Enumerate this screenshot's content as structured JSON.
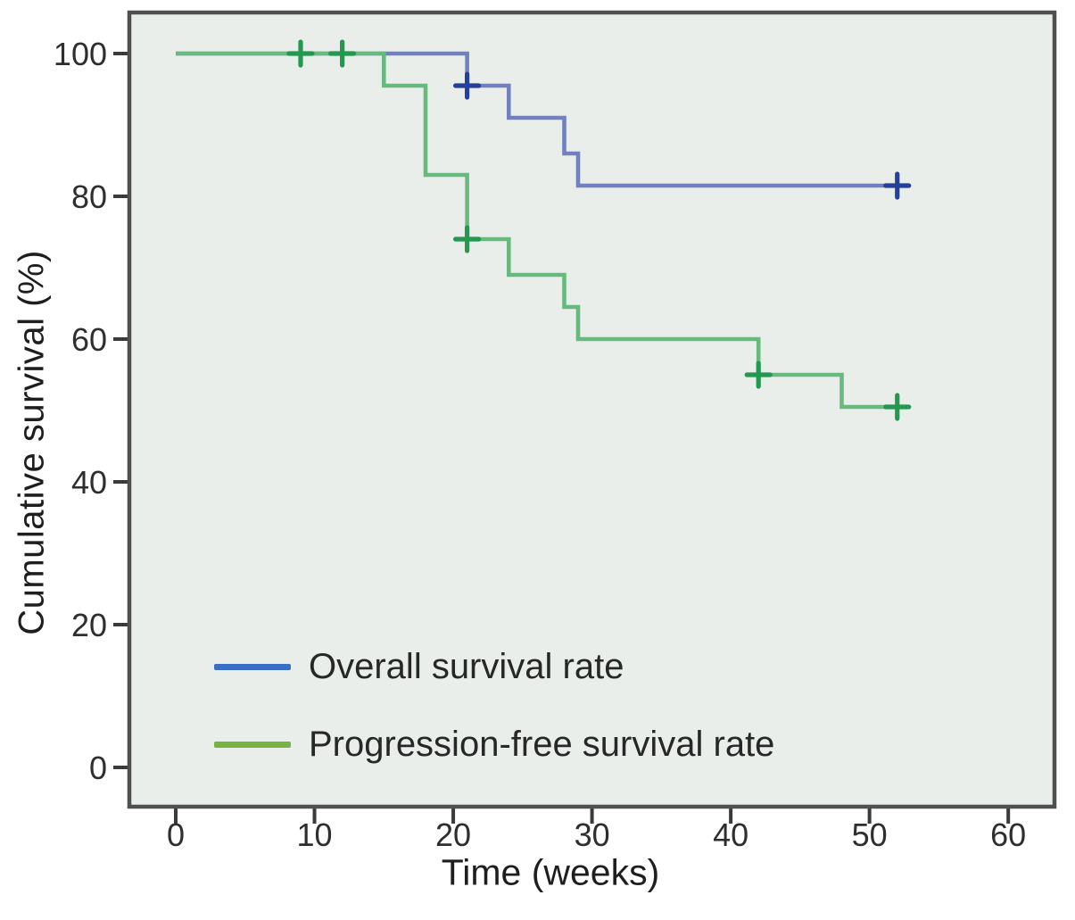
{
  "chart_data": {
    "type": "line",
    "variant": "kaplan_meier_step",
    "title": "",
    "xlabel": "Time (weeks)",
    "ylabel": "Cumulative survival (%)",
    "x_ticks": [
      0,
      10,
      20,
      30,
      40,
      50,
      60
    ],
    "y_ticks": [
      0,
      20,
      40,
      60,
      80,
      100
    ],
    "xlim": [
      0,
      60
    ],
    "ylim": [
      0,
      100
    ],
    "grid": false,
    "legend_position": "inside-lower-left",
    "series": [
      {
        "name": "Overall survival rate",
        "curve_color": "#7180be",
        "censor_color": "#24409f",
        "legend_color": "#3b6fc1",
        "steps": [
          [
            0,
            100
          ],
          [
            21,
            100
          ],
          [
            21,
            95.5
          ],
          [
            24,
            95.5
          ],
          [
            24,
            91
          ],
          [
            28,
            91
          ],
          [
            28,
            86
          ],
          [
            29,
            86
          ],
          [
            29,
            81.5
          ],
          [
            52.7,
            81.5
          ]
        ],
        "censors": [
          [
            21,
            95.5
          ],
          [
            52,
            81.5
          ]
        ]
      },
      {
        "name": "Progression-free survival rate",
        "curve_color": "#68b97e",
        "censor_color": "#23994f",
        "legend_color": "#78b342",
        "steps": [
          [
            0,
            100
          ],
          [
            15,
            100
          ],
          [
            15,
            95.5
          ],
          [
            18,
            95.5
          ],
          [
            18,
            83
          ],
          [
            21,
            83
          ],
          [
            21,
            74
          ],
          [
            24,
            74
          ],
          [
            24,
            69
          ],
          [
            28,
            69
          ],
          [
            28,
            64.5
          ],
          [
            29,
            64.5
          ],
          [
            29,
            60
          ],
          [
            42,
            60
          ],
          [
            42,
            55
          ],
          [
            48,
            55
          ],
          [
            48,
            50.5
          ],
          [
            52.7,
            50.5
          ]
        ],
        "censors": [
          [
            9,
            100
          ],
          [
            12,
            100
          ],
          [
            21,
            74
          ],
          [
            42,
            55
          ],
          [
            52,
            50.5
          ]
        ]
      }
    ],
    "colors": {
      "plot_background": "#e9eeeb",
      "plot_border": "#4f4f4f",
      "tick": "#3a3a3a",
      "tick_text": "#2e2e2e"
    }
  }
}
